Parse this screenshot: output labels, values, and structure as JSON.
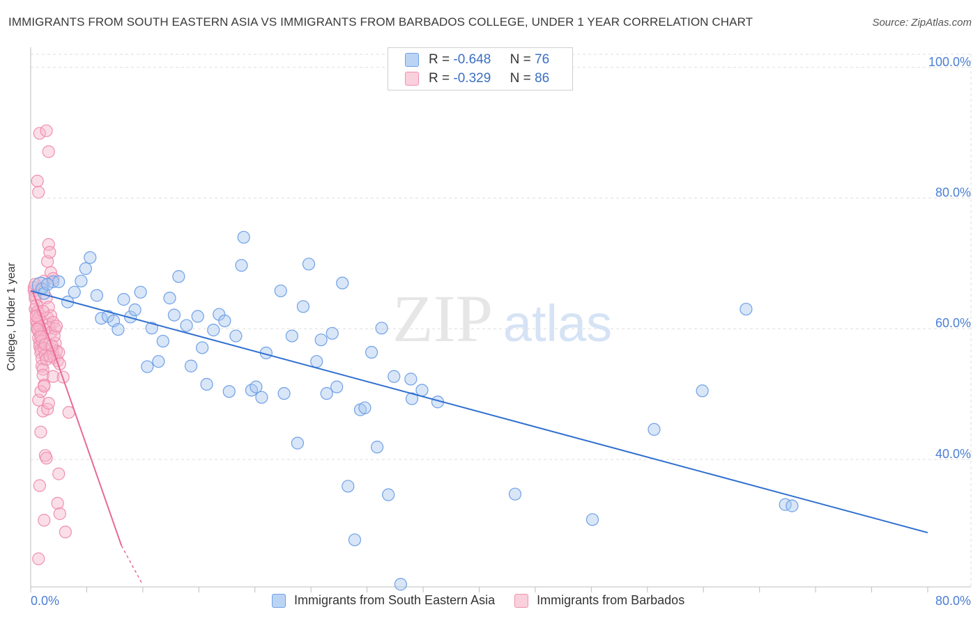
{
  "title": "IMMIGRANTS FROM SOUTH EASTERN ASIA VS IMMIGRANTS FROM BARBADOS COLLEGE, UNDER 1 YEAR CORRELATION CHART",
  "source": "Source: ZipAtlas.com",
  "watermark": {
    "zip": "ZIP",
    "atlas": "atlas"
  },
  "legend_top": [
    {
      "r_label": "R =",
      "r_value": "-0.648",
      "n_label": "N =",
      "n_value": "76",
      "color": "#6fa0e6"
    },
    {
      "r_label": "R =",
      "r_value": "-0.329",
      "n_label": "N =",
      "n_value": "86",
      "color": "#f08cae"
    }
  ],
  "colors": {
    "blue_fill": "#a9c8f0",
    "blue_stroke": "#6fa0e6",
    "blue_line": "#2f6fd0",
    "pink_fill": "#f7b8cb",
    "pink_stroke": "#ef8fb0",
    "pink_line": "#e8699a",
    "tick_label": "#4a7fd4",
    "grid": "#dddddd"
  },
  "chart_data": {
    "type": "scatter",
    "title": "IMMIGRANTS FROM SOUTH EASTERN ASIA VS IMMIGRANTS FROM BARBADOS COLLEGE, UNDER 1 YEAR CORRELATION CHART",
    "xlabel": "",
    "ylabel": "College, Under 1 year",
    "xlim": [
      0,
      80
    ],
    "ylim": [
      20.5,
      102
    ],
    "x_tick_labels": [
      "0.0%",
      "80.0%"
    ],
    "y_ticks": [
      40,
      60,
      80,
      100
    ],
    "y_tick_labels": [
      "40.0%",
      "60.0%",
      "80.0%",
      "100.0%"
    ],
    "grid": true,
    "legend_position": "bottom-center",
    "series": [
      {
        "name": "Immigrants from South Eastern Asia",
        "color": "#6fa0e6",
        "trend": {
          "x": [
            0,
            80
          ],
          "y": [
            65.8,
            28.8
          ]
        },
        "points": [
          [
            0.9,
            66.6
          ],
          [
            1.0,
            66.1
          ],
          [
            1.2,
            65.4
          ],
          [
            2.0,
            67.2
          ],
          [
            2.5,
            67.2
          ],
          [
            3.3,
            64.1
          ],
          [
            3.9,
            65.6
          ],
          [
            4.5,
            67.3
          ],
          [
            4.9,
            69.2
          ],
          [
            5.3,
            70.9
          ],
          [
            5.9,
            65.1
          ],
          [
            6.3,
            61.6
          ],
          [
            6.9,
            61.9
          ],
          [
            7.4,
            61.2
          ],
          [
            7.8,
            59.9
          ],
          [
            8.3,
            64.5
          ],
          [
            8.9,
            61.8
          ],
          [
            9.3,
            62.9
          ],
          [
            9.8,
            65.6
          ],
          [
            10.4,
            54.2
          ],
          [
            10.8,
            60.1
          ],
          [
            11.4,
            55.0
          ],
          [
            11.8,
            58.1
          ],
          [
            12.4,
            64.7
          ],
          [
            12.8,
            62.1
          ],
          [
            13.2,
            68.0
          ],
          [
            13.9,
            60.5
          ],
          [
            14.3,
            54.3
          ],
          [
            14.9,
            61.9
          ],
          [
            15.3,
            57.1
          ],
          [
            15.7,
            51.5
          ],
          [
            16.3,
            59.8
          ],
          [
            16.8,
            62.2
          ],
          [
            17.3,
            61.2
          ],
          [
            17.7,
            50.4
          ],
          [
            18.3,
            58.9
          ],
          [
            18.8,
            69.7
          ],
          [
            19.0,
            74.0
          ],
          [
            19.7,
            50.6
          ],
          [
            20.1,
            51.1
          ],
          [
            20.6,
            49.5
          ],
          [
            21.0,
            56.3
          ],
          [
            22.3,
            65.8
          ],
          [
            22.6,
            50.1
          ],
          [
            23.3,
            58.9
          ],
          [
            23.8,
            42.5
          ],
          [
            24.3,
            63.4
          ],
          [
            24.8,
            69.9
          ],
          [
            25.5,
            55.0
          ],
          [
            25.9,
            58.3
          ],
          [
            26.4,
            50.1
          ],
          [
            26.9,
            59.3
          ],
          [
            27.3,
            51.1
          ],
          [
            27.8,
            67.0
          ],
          [
            28.3,
            35.9
          ],
          [
            28.9,
            27.7
          ],
          [
            29.4,
            47.6
          ],
          [
            29.8,
            47.9
          ],
          [
            30.4,
            56.4
          ],
          [
            30.9,
            41.9
          ],
          [
            31.3,
            60.1
          ],
          [
            31.9,
            34.6
          ],
          [
            32.4,
            52.7
          ],
          [
            33.0,
            20.9
          ],
          [
            33.9,
            52.3
          ],
          [
            34.0,
            49.3
          ],
          [
            34.9,
            50.6
          ],
          [
            36.3,
            48.8
          ],
          [
            43.2,
            34.7
          ],
          [
            50.1,
            30.8
          ],
          [
            55.6,
            44.6
          ],
          [
            59.9,
            50.5
          ],
          [
            63.8,
            63.0
          ],
          [
            67.3,
            33.1
          ],
          [
            67.9,
            32.9
          ],
          [
            1.5,
            66.8
          ]
        ]
      },
      {
        "name": "Immigrants from Barbados",
        "color": "#ef8fb0",
        "trend": {
          "x": [
            0.2,
            8.1
          ],
          "y": [
            65.6,
            26.8
          ]
        },
        "trend_dashed": {
          "x": [
            8.1,
            10.0
          ],
          "y": [
            26.8,
            20.8
          ]
        },
        "points": [
          [
            0.3,
            65.8
          ],
          [
            0.4,
            64.6
          ],
          [
            0.4,
            63.0
          ],
          [
            0.5,
            62.1
          ],
          [
            0.5,
            61.2
          ],
          [
            0.6,
            60.7
          ],
          [
            0.6,
            60.1
          ],
          [
            0.7,
            59.6
          ],
          [
            0.7,
            58.6
          ],
          [
            0.8,
            57.9
          ],
          [
            0.8,
            57.3
          ],
          [
            0.9,
            56.8
          ],
          [
            0.9,
            56.3
          ],
          [
            1.0,
            55.4
          ],
          [
            1.0,
            54.3
          ],
          [
            1.1,
            53.8
          ],
          [
            1.1,
            52.9
          ],
          [
            1.2,
            51.4
          ],
          [
            0.3,
            66.3
          ],
          [
            0.4,
            65.1
          ],
          [
            0.5,
            63.6
          ],
          [
            0.6,
            62.6
          ],
          [
            0.7,
            61.7
          ],
          [
            0.8,
            60.3
          ],
          [
            0.9,
            59.2
          ],
          [
            1.0,
            58.1
          ],
          [
            1.2,
            57.0
          ],
          [
            1.3,
            56.0
          ],
          [
            1.4,
            55.3
          ],
          [
            1.5,
            61.7
          ],
          [
            1.6,
            60.7
          ],
          [
            1.7,
            60.1
          ],
          [
            1.8,
            59.4
          ],
          [
            1.9,
            56.9
          ],
          [
            2.0,
            56.2
          ],
          [
            2.1,
            55.6
          ],
          [
            2.2,
            57.8
          ],
          [
            2.3,
            56.6
          ],
          [
            2.4,
            55.1
          ],
          [
            2.5,
            56.4
          ],
          [
            1.2,
            67.3
          ],
          [
            1.4,
            64.7
          ],
          [
            1.6,
            63.3
          ],
          [
            1.8,
            62.0
          ],
          [
            2.0,
            61.0
          ],
          [
            2.2,
            60.0
          ],
          [
            1.5,
            70.3
          ],
          [
            1.6,
            72.9
          ],
          [
            1.7,
            71.7
          ],
          [
            1.8,
            68.6
          ],
          [
            2.0,
            67.7
          ],
          [
            0.6,
            82.6
          ],
          [
            0.7,
            80.9
          ],
          [
            0.8,
            89.9
          ],
          [
            1.4,
            90.3
          ],
          [
            1.6,
            87.1
          ],
          [
            0.7,
            49.1
          ],
          [
            0.9,
            50.4
          ],
          [
            1.1,
            47.4
          ],
          [
            1.2,
            51.2
          ],
          [
            1.5,
            47.7
          ],
          [
            1.6,
            48.6
          ],
          [
            2.0,
            52.7
          ],
          [
            2.9,
            52.6
          ],
          [
            3.4,
            47.2
          ],
          [
            0.9,
            44.2
          ],
          [
            1.3,
            40.6
          ],
          [
            1.4,
            40.2
          ],
          [
            2.5,
            37.8
          ],
          [
            0.8,
            36.0
          ],
          [
            1.2,
            30.7
          ],
          [
            2.4,
            33.3
          ],
          [
            2.6,
            31.7
          ],
          [
            3.1,
            28.9
          ],
          [
            0.7,
            24.8
          ],
          [
            0.4,
            66.8
          ],
          [
            0.5,
            61.9
          ],
          [
            0.6,
            59.9
          ],
          [
            0.9,
            58.8
          ],
          [
            1.3,
            57.6
          ],
          [
            1.7,
            55.8
          ],
          [
            2.1,
            58.9
          ],
          [
            2.6,
            54.6
          ],
          [
            1.1,
            62.7
          ],
          [
            1.9,
            57.4
          ],
          [
            2.3,
            60.4
          ]
        ]
      }
    ]
  }
}
